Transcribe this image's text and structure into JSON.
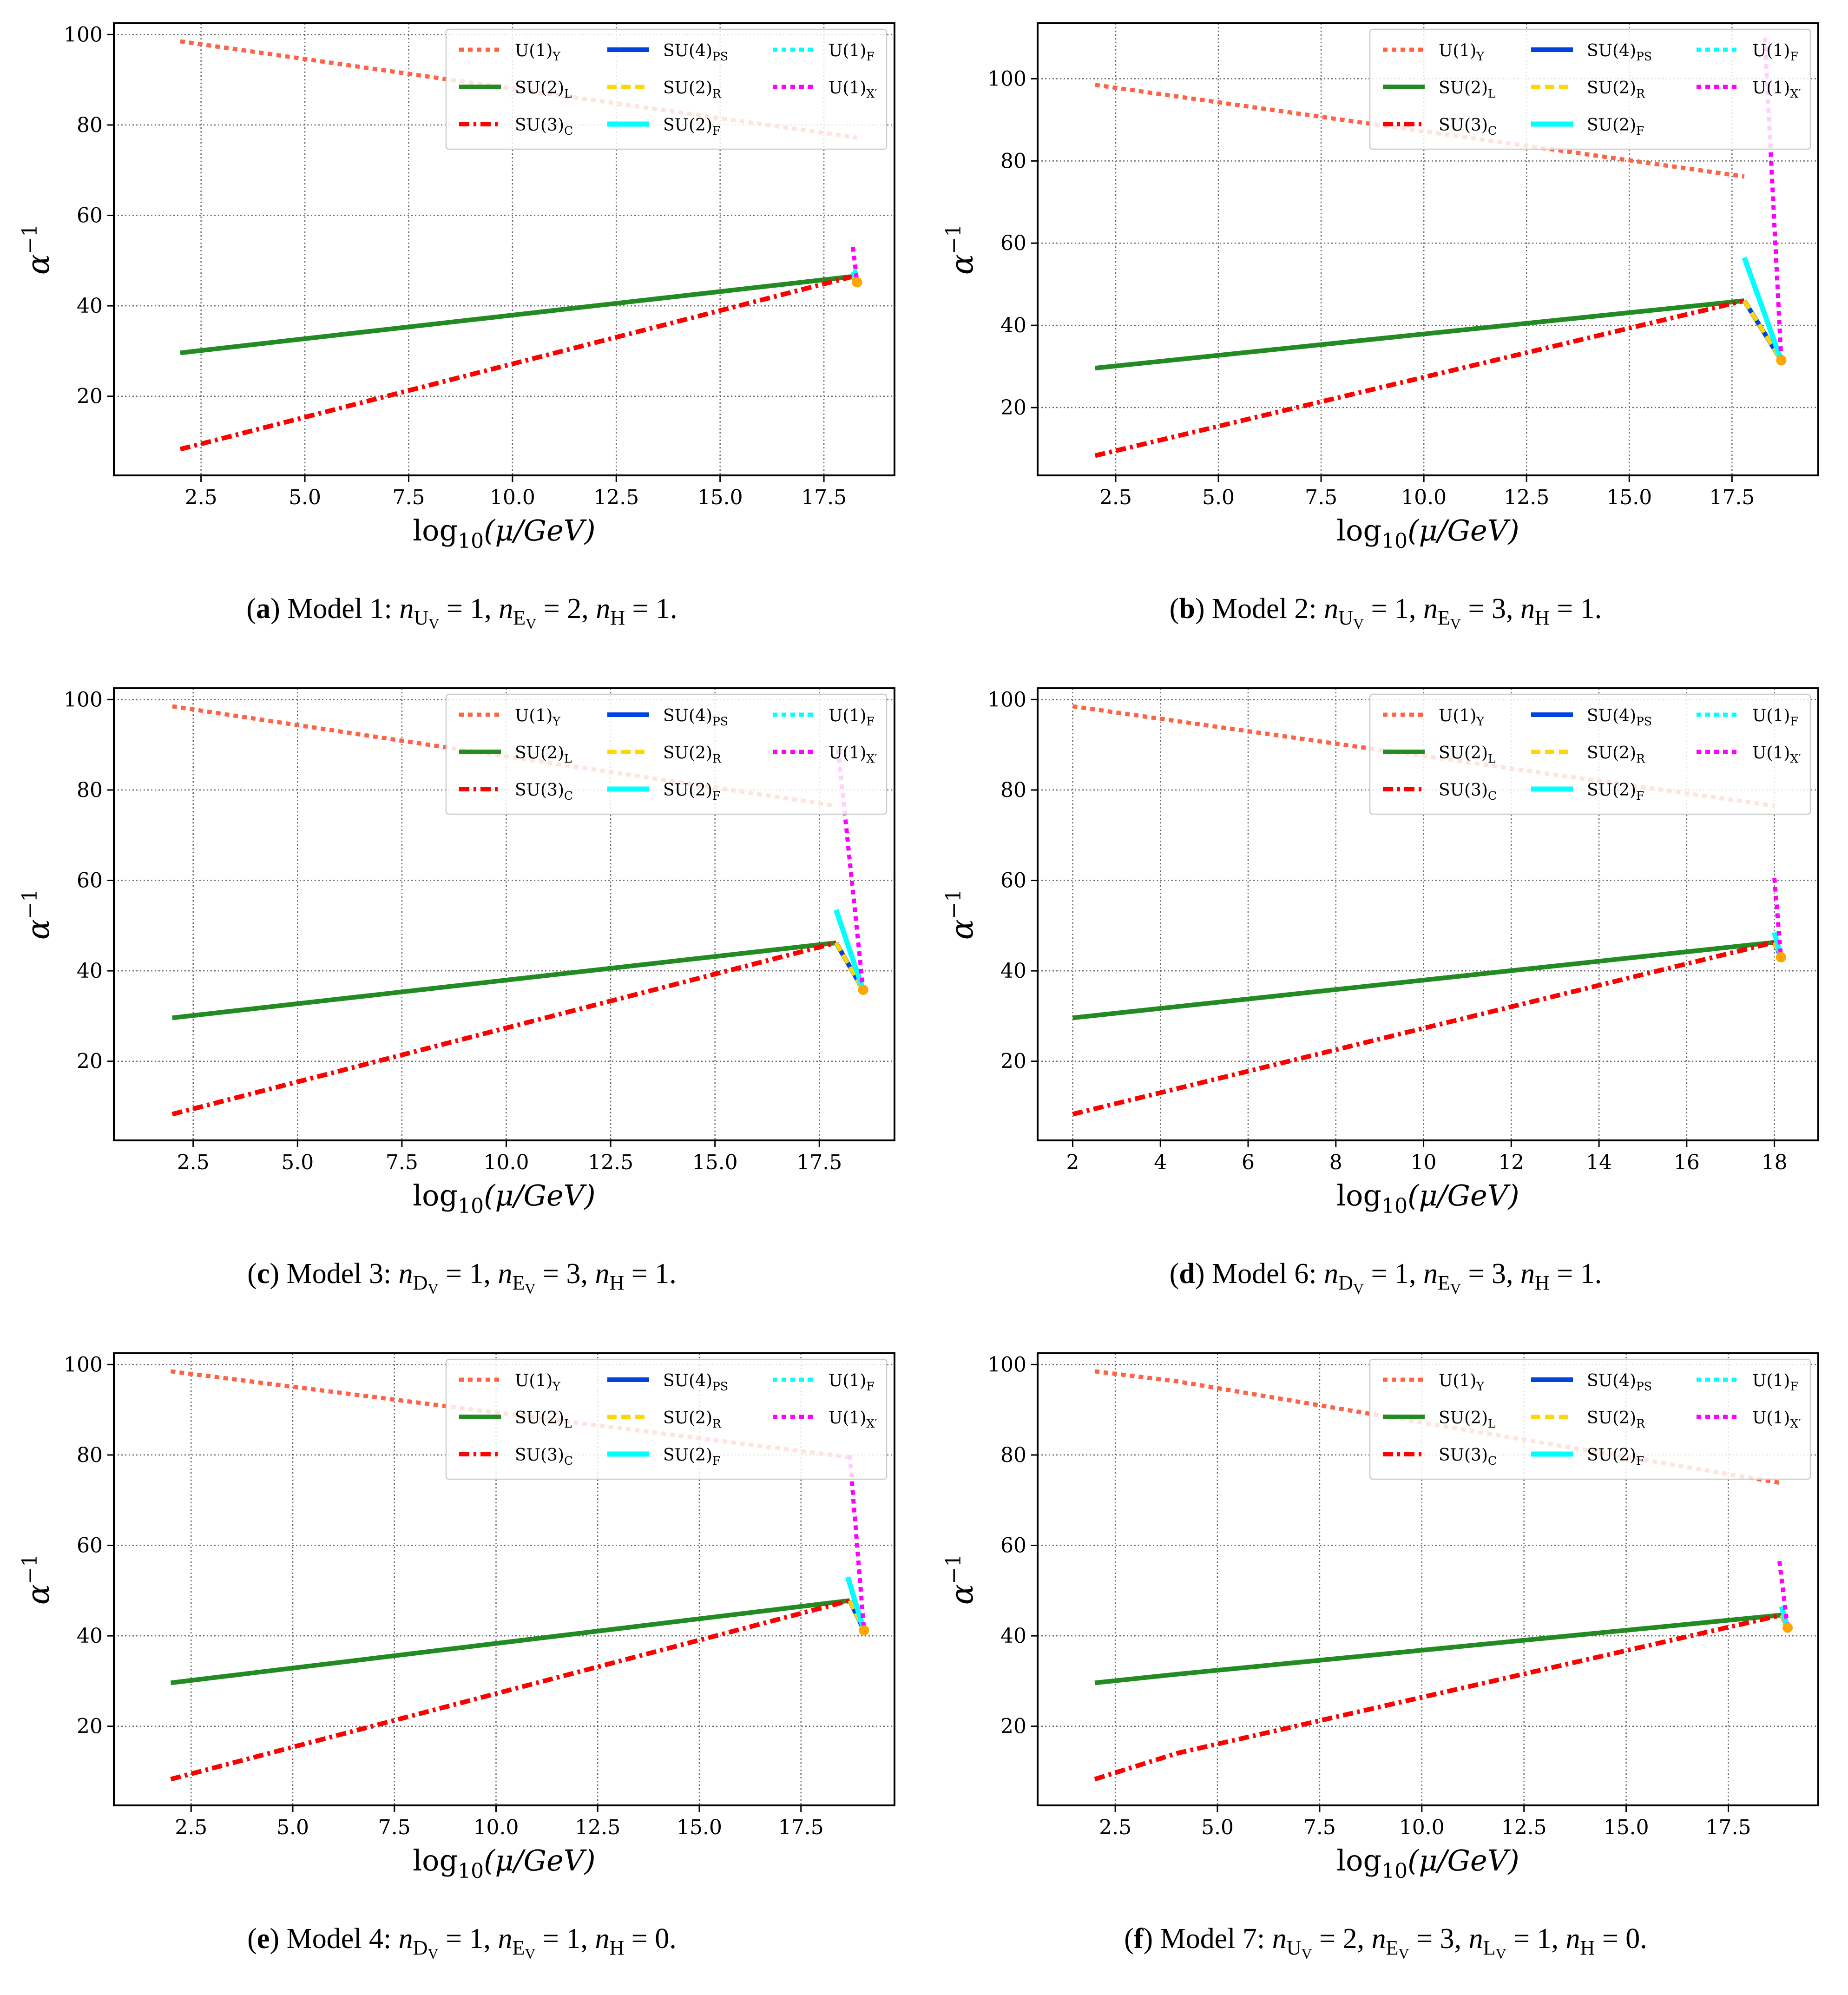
{
  "figure": {
    "panels": [
      {
        "caption_label": "a",
        "caption_text": "Model 1: n",
        "caption_math": "U_V = 1, n_E_V = 2, n_H = 1.",
        "caption_full": "Model 1: nUV = 1, nEV = 2, nH = 1."
      },
      {
        "caption_label": "b",
        "caption_full": "Model 2: nUV = 1, nEV = 3, nH = 1."
      },
      {
        "caption_label": "c",
        "caption_full": "Model 3: nDV = 1, nEV = 3, nH = 1."
      },
      {
        "caption_label": "d",
        "caption_full": "Model 6: nDV = 1, nEV = 3, nH = 1."
      },
      {
        "caption_label": "e",
        "caption_full": "Model 4: nDV = 1, nEV = 1, nH = 0."
      },
      {
        "caption_label": "f",
        "caption_full": "Model 7: nUV = 2, nEV = 3, nLV = 1, nH = 0."
      }
    ],
    "colors": {
      "U1Y": "#ff6347",
      "SU2L": "#228b22",
      "SU3C": "#ff0000",
      "SU4PS": "#0044dd",
      "SU2R": "#ffd700",
      "SU2F": "#00ffff",
      "U1F": "#00ffff",
      "U1Xp": "#ff00ff",
      "dot": "#ffa500"
    }
  },
  "chart_data": [
    {
      "type": "line",
      "title": "",
      "caption": "Model 1",
      "xlabel": "log10(μ/GeV)",
      "ylabel": "α−1",
      "xlim": [
        0.4,
        19.2
      ],
      "ylim": [
        2.5,
        102.5
      ],
      "xticks": [
        2.5,
        5.0,
        7.5,
        10.0,
        12.5,
        15.0,
        17.5
      ],
      "xtick_labels": [
        "2.5",
        "5.0",
        "7.5",
        "10.0",
        "12.5",
        "15.0",
        "17.5"
      ],
      "yticks": [
        20,
        40,
        60,
        80,
        100
      ],
      "ytick_labels": [
        "20",
        "40",
        "60",
        "80",
        "100"
      ],
      "grid": true,
      "legend": "top-right",
      "series": [
        {
          "name": "U(1)Y",
          "key": "U1Y",
          "x": [
            2.0,
            18.3
          ],
          "y": [
            98.5,
            77.2
          ]
        },
        {
          "name": "SU(2)L",
          "key": "SU2L",
          "x": [
            2.0,
            18.2
          ],
          "y": [
            29.6,
            46.5
          ]
        },
        {
          "name": "SU(3)C",
          "key": "SU3C",
          "x": [
            2.0,
            18.2
          ],
          "y": [
            8.3,
            46.5
          ]
        },
        {
          "name": "SU(4)PS",
          "key": "SU4PS",
          "x": [
            18.2,
            18.3
          ],
          "y": [
            46.5,
            45.2
          ]
        },
        {
          "name": "SU(2)R",
          "key": "SU2R",
          "x": [
            18.2,
            18.3
          ],
          "y": [
            46.5,
            45.2
          ]
        },
        {
          "name": "SU(2)F",
          "key": "SU2F",
          "x": [
            18.2,
            18.3
          ],
          "y": [
            47.5,
            45.2
          ]
        },
        {
          "name": "U(1)F",
          "key": "U1F",
          "x": [
            18.25,
            18.3
          ],
          "y": [
            48.0,
            45.2
          ]
        },
        {
          "name": "U(1)X′",
          "key": "U1Xp",
          "x": [
            18.2,
            18.3
          ],
          "y": [
            53.0,
            45.2
          ]
        }
      ],
      "unification_point": {
        "x": 18.3,
        "y": 45.2
      }
    },
    {
      "type": "line",
      "caption": "Model 2",
      "xlabel": "log10(μ/GeV)",
      "ylabel": "α−1",
      "xlim": [
        0.6,
        19.6
      ],
      "ylim": [
        3.5,
        113.5
      ],
      "xticks": [
        2.5,
        5.0,
        7.5,
        10.0,
        12.5,
        15.0,
        17.5
      ],
      "xtick_labels": [
        "2.5",
        "5.0",
        "7.5",
        "10.0",
        "12.5",
        "15.0",
        "17.5"
      ],
      "yticks": [
        20,
        40,
        60,
        80,
        100
      ],
      "ytick_labels": [
        "20",
        "40",
        "60",
        "80",
        "100"
      ],
      "grid": true,
      "legend": "top-right",
      "series": [
        {
          "name": "U(1)Y",
          "key": "U1Y",
          "x": [
            2.0,
            17.8
          ],
          "y": [
            98.5,
            76.2
          ]
        },
        {
          "name": "SU(2)L",
          "key": "SU2L",
          "x": [
            2.0,
            17.8
          ],
          "y": [
            29.6,
            46.0
          ]
        },
        {
          "name": "SU(3)C",
          "key": "SU3C",
          "x": [
            2.0,
            17.8
          ],
          "y": [
            8.3,
            46.0
          ]
        },
        {
          "name": "SU(4)PS",
          "key": "SU4PS",
          "x": [
            17.8,
            18.7
          ],
          "y": [
            46.0,
            31.5
          ]
        },
        {
          "name": "SU(2)R",
          "key": "SU2R",
          "x": [
            17.8,
            18.7
          ],
          "y": [
            46.0,
            31.5
          ]
        },
        {
          "name": "SU(2)F",
          "key": "SU2F",
          "x": [
            17.8,
            18.7
          ],
          "y": [
            56.5,
            31.5
          ]
        },
        {
          "name": "U(1)F",
          "key": "U1F",
          "x": [
            18.6,
            18.7
          ],
          "y": [
            34.0,
            31.5
          ]
        },
        {
          "name": "U(1)X′",
          "key": "U1Xp",
          "x": [
            18.3,
            18.7
          ],
          "y": [
            110.0,
            31.5
          ]
        }
      ],
      "unification_point": {
        "x": 18.7,
        "y": 31.5
      }
    },
    {
      "type": "line",
      "caption": "Model 3",
      "xlabel": "log10(μ/GeV)",
      "ylabel": "α−1",
      "xlim": [
        0.6,
        19.3
      ],
      "ylim": [
        2.5,
        102.5
      ],
      "xticks": [
        2.5,
        5.0,
        7.5,
        10.0,
        12.5,
        15.0,
        17.5
      ],
      "xtick_labels": [
        "2.5",
        "5.0",
        "7.5",
        "10.0",
        "12.5",
        "15.0",
        "17.5"
      ],
      "yticks": [
        20,
        40,
        60,
        80,
        100
      ],
      "ytick_labels": [
        "20",
        "40",
        "60",
        "80",
        "100"
      ],
      "grid": true,
      "legend": "top-right",
      "series": [
        {
          "name": "U(1)Y",
          "key": "U1Y",
          "x": [
            2.0,
            17.9
          ],
          "y": [
            98.5,
            76.5
          ]
        },
        {
          "name": "SU(2)L",
          "key": "SU2L",
          "x": [
            2.0,
            17.9
          ],
          "y": [
            29.6,
            46.2
          ]
        },
        {
          "name": "SU(3)C",
          "key": "SU3C",
          "x": [
            2.0,
            17.9
          ],
          "y": [
            8.3,
            46.2
          ]
        },
        {
          "name": "SU(4)PS",
          "key": "SU4PS",
          "x": [
            17.9,
            18.55
          ],
          "y": [
            46.2,
            35.8
          ]
        },
        {
          "name": "SU(2)R",
          "key": "SU2R",
          "x": [
            17.9,
            18.55
          ],
          "y": [
            46.2,
            35.8
          ]
        },
        {
          "name": "SU(2)F",
          "key": "SU2F",
          "x": [
            17.9,
            18.55
          ],
          "y": [
            53.5,
            35.8
          ]
        },
        {
          "name": "U(1)F",
          "key": "U1F",
          "x": [
            18.45,
            18.55
          ],
          "y": [
            38.5,
            35.8
          ]
        },
        {
          "name": "U(1)X′",
          "key": "U1Xp",
          "x": [
            17.95,
            18.55
          ],
          "y": [
            89.0,
            35.8
          ]
        }
      ],
      "unification_point": {
        "x": 18.55,
        "y": 35.8
      }
    },
    {
      "type": "line",
      "caption": "Model 6",
      "xlabel": "log10(μ/GeV)",
      "ylabel": "α−1",
      "xlim": [
        1.2,
        19.0
      ],
      "ylim": [
        2.5,
        102.5
      ],
      "xticks": [
        2,
        4,
        6,
        8,
        10,
        12,
        14,
        16,
        18
      ],
      "xtick_labels": [
        "2",
        "4",
        "6",
        "8",
        "10",
        "12",
        "14",
        "16",
        "18"
      ],
      "yticks": [
        20,
        40,
        60,
        80,
        100
      ],
      "ytick_labels": [
        "20",
        "40",
        "60",
        "80",
        "100"
      ],
      "grid": true,
      "legend": "top-right",
      "series": [
        {
          "name": "U(1)Y",
          "key": "U1Y",
          "x": [
            2.0,
            18.0
          ],
          "y": [
            98.5,
            76.5
          ]
        },
        {
          "name": "SU(2)L",
          "key": "SU2L",
          "x": [
            2.0,
            18.0
          ],
          "y": [
            29.6,
            46.3
          ]
        },
        {
          "name": "SU(3)C",
          "key": "SU3C",
          "x": [
            2.0,
            18.0
          ],
          "y": [
            8.3,
            46.3
          ]
        },
        {
          "name": "SU(4)PS",
          "key": "SU4PS",
          "x": [
            18.0,
            18.15
          ],
          "y": [
            46.3,
            43.0
          ]
        },
        {
          "name": "SU(2)R",
          "key": "SU2R",
          "x": [
            18.0,
            18.15
          ],
          "y": [
            46.3,
            43.0
          ]
        },
        {
          "name": "SU(2)F",
          "key": "SU2F",
          "x": [
            18.0,
            18.15
          ],
          "y": [
            48.5,
            43.0
          ]
        },
        {
          "name": "U(1)F",
          "key": "U1F",
          "x": [
            18.1,
            18.15
          ],
          "y": [
            45.0,
            43.0
          ]
        },
        {
          "name": "U(1)X′",
          "key": "U1Xp",
          "x": [
            18.0,
            18.15
          ],
          "y": [
            60.5,
            43.0
          ]
        }
      ],
      "unification_point": {
        "x": 18.15,
        "y": 43.0
      }
    },
    {
      "type": "line",
      "caption": "Model 4",
      "xlabel": "log10(μ/GeV)",
      "ylabel": "α−1",
      "xlim": [
        0.6,
        19.8
      ],
      "ylim": [
        2.5,
        102.5
      ],
      "xticks": [
        2.5,
        5.0,
        7.5,
        10.0,
        12.5,
        15.0,
        17.5
      ],
      "xtick_labels": [
        "2.5",
        "5.0",
        "7.5",
        "10.0",
        "12.5",
        "15.0",
        "17.5"
      ],
      "yticks": [
        20,
        40,
        60,
        80,
        100
      ],
      "ytick_labels": [
        "20",
        "40",
        "60",
        "80",
        "100"
      ],
      "grid": true,
      "legend": "top-right",
      "series": [
        {
          "name": "U(1)Y",
          "key": "U1Y",
          "x": [
            2.0,
            18.7
          ],
          "y": [
            98.5,
            79.5
          ]
        },
        {
          "name": "SU(2)L",
          "key": "SU2L",
          "x": [
            2.0,
            18.7
          ],
          "y": [
            29.6,
            47.8
          ]
        },
        {
          "name": "SU(3)C",
          "key": "SU3C",
          "x": [
            2.0,
            18.7
          ],
          "y": [
            8.3,
            47.8
          ]
        },
        {
          "name": "SU(4)PS",
          "key": "SU4PS",
          "x": [
            18.7,
            19.05
          ],
          "y": [
            47.8,
            41.2
          ]
        },
        {
          "name": "SU(2)R",
          "key": "SU2R",
          "x": [
            18.7,
            19.05
          ],
          "y": [
            47.8,
            41.2
          ]
        },
        {
          "name": "SU(2)F",
          "key": "SU2F",
          "x": [
            18.65,
            19.05
          ],
          "y": [
            53.0,
            41.2
          ]
        },
        {
          "name": "U(1)F",
          "key": "U1F",
          "x": [
            18.95,
            19.05
          ],
          "y": [
            44.0,
            41.2
          ]
        },
        {
          "name": "U(1)X′",
          "key": "U1Xp",
          "x": [
            18.7,
            19.05
          ],
          "y": [
            80.0,
            41.2
          ]
        }
      ],
      "unification_point": {
        "x": 19.05,
        "y": 41.2
      }
    },
    {
      "type": "line",
      "caption": "Model 7",
      "xlabel": "log10(μ/GeV)",
      "ylabel": "α−1",
      "xlim": [
        0.6,
        19.7
      ],
      "ylim": [
        2.5,
        102.5
      ],
      "xticks": [
        2.5,
        5.0,
        7.5,
        10.0,
        12.5,
        15.0,
        17.5
      ],
      "xtick_labels": [
        "2.5",
        "5.0",
        "7.5",
        "10.0",
        "12.5",
        "15.0",
        "17.5"
      ],
      "yticks": [
        20,
        40,
        60,
        80,
        100
      ],
      "ytick_labels": [
        "20",
        "40",
        "60",
        "80",
        "100"
      ],
      "grid": true,
      "legend": "top-right",
      "series": [
        {
          "name": "U(1)Y",
          "key": "U1Y",
          "x": [
            2.0,
            4.0,
            18.8
          ],
          "y": [
            98.5,
            96.3,
            73.8
          ]
        },
        {
          "name": "SU(2)L",
          "key": "SU2L",
          "x": [
            2.0,
            4.0,
            18.8
          ],
          "y": [
            29.6,
            31.5,
            44.6
          ]
        },
        {
          "name": "SU(3)C",
          "key": "SU3C",
          "x": [
            2.0,
            4.0,
            18.8
          ],
          "y": [
            8.3,
            14.0,
            44.6
          ]
        },
        {
          "name": "SU(4)PS",
          "key": "SU4PS",
          "x": [
            18.8,
            18.95
          ],
          "y": [
            44.6,
            41.8
          ]
        },
        {
          "name": "SU(2)R",
          "key": "SU2R",
          "x": [
            18.8,
            18.95
          ],
          "y": [
            44.6,
            41.8
          ]
        },
        {
          "name": "SU(2)F",
          "key": "SU2F",
          "x": [
            18.8,
            18.95
          ],
          "y": [
            46.5,
            41.8
          ]
        },
        {
          "name": "U(1)F",
          "key": "U1F",
          "x": [
            18.9,
            18.95
          ],
          "y": [
            43.5,
            41.8
          ]
        },
        {
          "name": "U(1)X′",
          "key": "U1Xp",
          "x": [
            18.75,
            18.95
          ],
          "y": [
            56.5,
            41.8
          ]
        }
      ],
      "unification_point": {
        "x": 18.95,
        "y": 41.8
      }
    }
  ],
  "legend": {
    "entries": [
      {
        "key": "U1Y",
        "base": "U(1)",
        "sub": "Y"
      },
      {
        "key": "SU2L",
        "base": "SU(2)",
        "sub": "L"
      },
      {
        "key": "SU3C",
        "base": "SU(3)",
        "sub": "C"
      },
      {
        "key": "SU4PS",
        "base": "SU(4)",
        "sub": "PS"
      },
      {
        "key": "SU2R",
        "base": "SU(2)",
        "sub": "R"
      },
      {
        "key": "SU2F",
        "base": "SU(2)",
        "sub": "F"
      },
      {
        "key": "U1F",
        "base": "U(1)",
        "sub": "F"
      },
      {
        "key": "U1Xp",
        "base": "U(1)",
        "sub": "X′"
      }
    ]
  },
  "axis_text": {
    "xlabel_log": "log",
    "xlabel_sub": "10",
    "xlabel_rest": "(μ/GeV)",
    "ylabel_base": "α",
    "ylabel_sup": "−1"
  },
  "captions": [
    {
      "label": "a",
      "model": "Model 1:",
      "parts": [
        [
          "n",
          "U",
          "V",
          " = 1, "
        ],
        [
          "n",
          "E",
          "V",
          " = 2, "
        ],
        [
          "n",
          "H",
          "",
          " = 1."
        ]
      ]
    },
    {
      "label": "b",
      "model": "Model 2:",
      "parts": [
        [
          "n",
          "U",
          "V",
          " = 1, "
        ],
        [
          "n",
          "E",
          "V",
          " = 3, "
        ],
        [
          "n",
          "H",
          "",
          " = 1."
        ]
      ]
    },
    {
      "label": "c",
      "model": "Model 3:",
      "parts": [
        [
          "n",
          "D",
          "V",
          " = 1, "
        ],
        [
          "n",
          "E",
          "V",
          " = 3, "
        ],
        [
          "n",
          "H",
          "",
          " = 1."
        ]
      ]
    },
    {
      "label": "d",
      "model": "Model 6:",
      "parts": [
        [
          "n",
          "D",
          "V",
          " = 1, "
        ],
        [
          "n",
          "E",
          "V",
          " = 3, "
        ],
        [
          "n",
          "H",
          "",
          " = 1."
        ]
      ]
    },
    {
      "label": "e",
      "model": "Model 4:",
      "parts": [
        [
          "n",
          "D",
          "V",
          " = 1, "
        ],
        [
          "n",
          "E",
          "V",
          " = 1, "
        ],
        [
          "n",
          "H",
          "",
          " = 0."
        ]
      ]
    },
    {
      "label": "f",
      "model": "Model 7:",
      "parts": [
        [
          "n",
          "U",
          "V",
          " = 2, "
        ],
        [
          "n",
          "E",
          "V",
          " = 3, "
        ],
        [
          "n",
          "L",
          "V",
          " = 1, "
        ],
        [
          "n",
          "H",
          "",
          " = 0."
        ]
      ]
    }
  ]
}
